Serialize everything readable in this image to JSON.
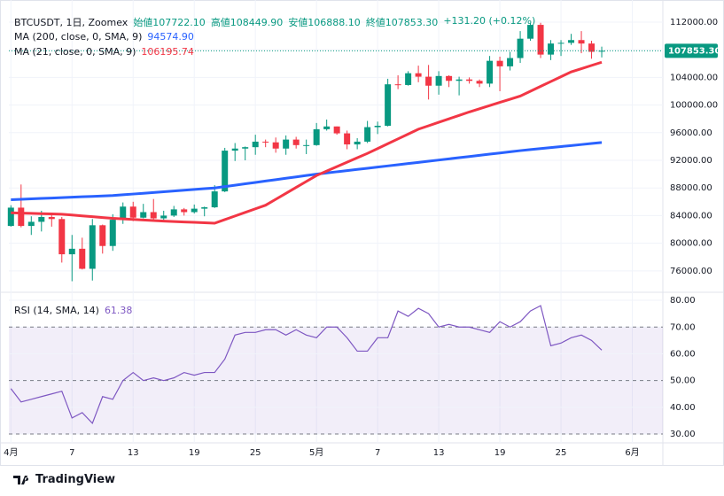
{
  "chart_data": [
    {
      "type": "candlestick",
      "header": {
        "symbol": "BTCUSDT, 1日, Zoomex",
        "open": "始値107722.10",
        "high": "高値108449.90",
        "low": "安値106888.10",
        "close": "終値107853.30",
        "change": "+131.20 (+0.12%)"
      },
      "up_color": "#089981",
      "down_color": "#f23645",
      "open": [
        82500,
        85150,
        82500,
        83100,
        83800,
        83500,
        78400,
        79200,
        76300,
        82600,
        79600,
        83400,
        85300,
        83700,
        84500,
        83600,
        84000,
        84900,
        84500,
        85000,
        85200,
        87500,
        93400,
        93700,
        93900,
        94700,
        94600,
        93700,
        95000,
        94200,
        94200,
        96500,
        96900,
        95900,
        94300,
        94700,
        96800,
        97000,
        103000,
        102900,
        104600,
        104100,
        102800,
        104200,
        103500,
        103700,
        103500,
        103100,
        106400,
        105600,
        106800,
        109600,
        111600,
        107300,
        108900,
        109000,
        109400,
        108900,
        107722.1
      ],
      "high": [
        85500,
        88500,
        83900,
        84700,
        84200,
        83800,
        81200,
        80800,
        83500,
        82700,
        84200,
        85900,
        86000,
        85700,
        86400,
        84700,
        85400,
        85100,
        85600,
        85300,
        88400,
        93800,
        94500,
        94000,
        95700,
        95000,
        95300,
        95600,
        95400,
        95000,
        97400,
        97900,
        96900,
        96300,
        95200,
        97700,
        97600,
        103800,
        104300,
        104900,
        105700,
        105800,
        104900,
        104300,
        104100,
        104000,
        103700,
        107100,
        107000,
        107700,
        110700,
        111900,
        111900,
        109400,
        109400,
        110300,
        110700,
        109300,
        108449.9
      ],
      "low": [
        82400,
        82300,
        81200,
        81700,
        82400,
        77200,
        74500,
        76200,
        74600,
        78500,
        78900,
        82800,
        83200,
        83600,
        83100,
        83200,
        83800,
        84000,
        84300,
        83900,
        85100,
        87400,
        91900,
        92000,
        92800,
        93900,
        93100,
        92800,
        93700,
        92900,
        94100,
        96300,
        95700,
        93600,
        93600,
        94500,
        95800,
        96900,
        102300,
        102800,
        103300,
        100800,
        101500,
        102600,
        101400,
        103100,
        102600,
        102600,
        102000,
        105000,
        106100,
        109300,
        106800,
        106500,
        107100,
        108700,
        107500,
        106700,
        106888.1
      ],
      "close": [
        85150,
        82500,
        83100,
        83800,
        83500,
        78400,
        79200,
        76300,
        82600,
        79600,
        83400,
        85300,
        83700,
        84500,
        83600,
        84000,
        84900,
        84500,
        85000,
        85200,
        87500,
        93400,
        93700,
        93900,
        94700,
        94600,
        93700,
        95000,
        94200,
        94200,
        96500,
        96900,
        95900,
        94300,
        94700,
        96800,
        97000,
        103000,
        102900,
        104600,
        104100,
        102800,
        104200,
        103500,
        103700,
        103500,
        103100,
        106400,
        105600,
        106800,
        109600,
        111600,
        107300,
        108900,
        109000,
        109400,
        108900,
        107700,
        107853.3
      ],
      "series": [
        {
          "name": "MA (200, close, 0, SMA, 9)",
          "color": "#2962ff",
          "value_label": "94574.90",
          "values": [
            86300,
            86360,
            86420,
            86480,
            86540,
            86600,
            86660,
            86720,
            86780,
            86840,
            86900,
            87010,
            87120,
            87230,
            87340,
            87450,
            87560,
            87670,
            87780,
            87890,
            88000,
            88200,
            88400,
            88600,
            88800,
            89000,
            89200,
            89400,
            89600,
            89800,
            90000,
            90170,
            90340,
            90510,
            90680,
            90850,
            91020,
            91190,
            91360,
            91530,
            91700,
            91870,
            92040,
            92210,
            92380,
            92550,
            92720,
            92890,
            93060,
            93230,
            93400,
            93547,
            93694,
            93841,
            93988,
            94135,
            94282,
            94429,
            94574.9
          ]
        },
        {
          "name": "MA (21, close, 0, SMA, 9)",
          "color": "#f23645",
          "value_label": "106195.74",
          "values": [
            84400,
            84360,
            84320,
            84280,
            84240,
            84200,
            84080,
            83960,
            83840,
            83720,
            83600,
            83520,
            83440,
            83360,
            83280,
            83200,
            83140,
            83080,
            83020,
            82960,
            82900,
            83420,
            83940,
            84460,
            84980,
            85500,
            86360,
            87220,
            88080,
            88940,
            89800,
            90440,
            91080,
            91720,
            92360,
            93000,
            93700,
            94400,
            95100,
            95800,
            96500,
            97000,
            97500,
            98000,
            98500,
            99000,
            99460,
            99920,
            100380,
            100840,
            101300,
            102000,
            102700,
            103400,
            104100,
            104800,
            105265,
            105730,
            106195.74
          ]
        }
      ],
      "last_price": {
        "value": 107853.3,
        "label": "107853.30"
      },
      "xlim": [
        -0.2,
        64
      ],
      "xticks": [
        {
          "value": 0,
          "label": "4月"
        },
        {
          "value": 6,
          "label": "7"
        },
        {
          "value": 12,
          "label": "13"
        },
        {
          "value": 18,
          "label": "19"
        },
        {
          "value": 24,
          "label": "25"
        },
        {
          "value": 30,
          "label": "5月"
        },
        {
          "value": 36,
          "label": "7"
        },
        {
          "value": 42,
          "label": "13"
        },
        {
          "value": 48,
          "label": "19"
        },
        {
          "value": 54,
          "label": "25"
        },
        {
          "value": 61,
          "label": "6月"
        }
      ],
      "ylim": [
        72900,
        115200
      ],
      "yticks": [
        {
          "value": 76000,
          "label": "76000.00"
        },
        {
          "value": 80000,
          "label": "80000.00"
        },
        {
          "value": 84000,
          "label": "84000.00"
        },
        {
          "value": 88000,
          "label": "88000.00"
        },
        {
          "value": 92000,
          "label": "92000.00"
        },
        {
          "value": 96000,
          "label": "96000.00"
        },
        {
          "value": 100000,
          "label": "100000.00"
        },
        {
          "value": 104000,
          "label": "104000.00"
        },
        {
          "value": 108000,
          "label": "108000.00"
        },
        {
          "value": 112000,
          "label": "112000.00"
        }
      ],
      "grid": true
    },
    {
      "type": "line",
      "series": [
        {
          "name": "RSI (14, SMA, 14)",
          "color": "#7e57c2",
          "value_label": "61.38",
          "values": [
            47,
            42,
            43,
            44,
            45,
            46,
            36,
            38,
            34,
            44,
            43,
            50,
            53,
            50,
            51,
            50,
            51,
            53,
            52,
            53,
            53,
            58,
            67,
            68,
            68,
            69,
            69,
            67,
            69,
            67,
            66,
            70,
            70,
            66,
            61,
            61,
            66,
            66,
            76,
            74,
            77,
            75,
            70,
            71,
            70,
            70,
            69,
            68,
            72,
            70,
            72,
            76,
            78,
            63,
            64,
            66,
            67,
            65,
            61.38
          ]
        }
      ],
      "band": [
        30,
        70
      ],
      "band_color": "#7e57c2",
      "levels": [
        30,
        50,
        70
      ],
      "ylim": [
        26.7,
        83
      ],
      "yticks": [
        {
          "value": 30,
          "label": "30.00"
        },
        {
          "value": 40,
          "label": "40.00"
        },
        {
          "value": 50,
          "label": "50.00"
        },
        {
          "value": 60,
          "label": "60.00"
        },
        {
          "value": 70,
          "label": "70.00"
        },
        {
          "value": 80,
          "label": "80.00"
        }
      ],
      "grid": true
    }
  ],
  "footer": {
    "brand": "TradingView"
  }
}
